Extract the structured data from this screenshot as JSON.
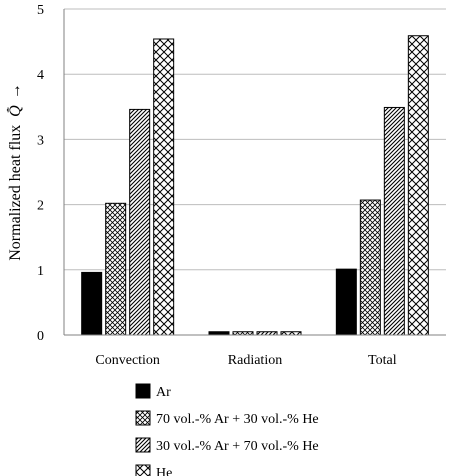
{
  "chart_data": {
    "type": "bar",
    "ylabel": "Normalized heat flux",
    "ylabel_symbol": "Q̄̇",
    "ylabel_arrow": "→",
    "ylim": [
      0,
      5
    ],
    "yticks": [
      "0",
      "1",
      "2",
      "3",
      "4",
      "5"
    ],
    "grid": true,
    "legend_position": "bottom",
    "categories": [
      "Convection",
      "Radiation",
      "Total"
    ],
    "series": [
      {
        "name": "Ar",
        "values": [
          0.96,
          0.05,
          1.01
        ],
        "pattern": "solid",
        "color": "#000000"
      },
      {
        "name": "70 vol.-% Ar + 30 vol.-% He",
        "values": [
          2.02,
          0.05,
          2.07
        ],
        "pattern": "fine-crosshatch",
        "color": "#000000"
      },
      {
        "name": "30 vol.-% Ar + 70 vol.-% He",
        "values": [
          3.46,
          0.05,
          3.49
        ],
        "pattern": "diagonal-hatch",
        "color": "#000000"
      },
      {
        "name": "He",
        "values": [
          4.54,
          0.05,
          4.59
        ],
        "pattern": "coarse-crosshatch",
        "color": "#000000"
      }
    ]
  }
}
